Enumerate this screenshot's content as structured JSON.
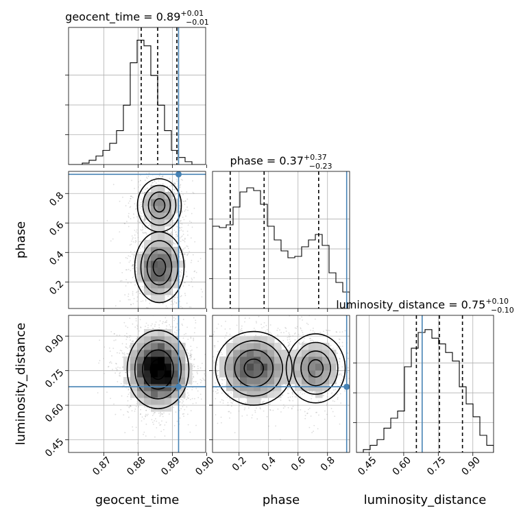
{
  "chart_data": {
    "type": "corner",
    "parameters": [
      "geocent_time",
      "phase",
      "luminosity_distance"
    ],
    "axes": {
      "geocent_time": {
        "label": "geocent_time",
        "range": [
          0.8597,
          0.8997
        ],
        "ticks": [
          0.87,
          0.88,
          0.89,
          0.9
        ],
        "tick_labels": [
          "0.87",
          "0.88",
          "0.89",
          "0.90"
        ]
      },
      "phase": {
        "label": "phase",
        "range": [
          0.02,
          0.95
        ],
        "ticks": [
          0.2,
          0.4,
          0.6,
          0.8
        ],
        "tick_labels": [
          "0.2",
          "0.4",
          "0.6",
          "0.8"
        ]
      },
      "luminosity_distance": {
        "label": "luminosity_distance",
        "range": [
          0.395,
          0.99
        ],
        "ticks": [
          0.45,
          0.6,
          0.75,
          0.9
        ],
        "tick_labels": [
          "0.45",
          "0.60",
          "0.75",
          "0.90"
        ]
      }
    },
    "truths": {
      "geocent_time": 0.8918,
      "phase": 0.93,
      "luminosity_distance": 0.68
    },
    "marginals": [
      {
        "param": "geocent_time",
        "title_main": "geocent_time = 0.89",
        "title_plus": "+0.01",
        "title_minus": "−0.01",
        "quantiles": [
          0.8809,
          0.8857,
          0.8913
        ],
        "bin_edges": [
          0.8597,
          0.8617,
          0.8637,
          0.8657,
          0.8677,
          0.8697,
          0.8717,
          0.8737,
          0.8757,
          0.8777,
          0.8797,
          0.8817,
          0.8837,
          0.8857,
          0.8877,
          0.8897,
          0.8917,
          0.8937,
          0.8957,
          0.8977,
          0.8997
        ],
        "counts": [
          0,
          0,
          0.01,
          0.03,
          0.06,
          0.1,
          0.15,
          0.24,
          0.42,
          0.72,
          0.88,
          0.84,
          0.63,
          0.42,
          0.24,
          0.1,
          0.05,
          0.02,
          0,
          0
        ],
        "ymax": 0.97
      },
      {
        "param": "phase",
        "title_main": "phase = 0.37",
        "title_plus": "+0.37",
        "title_minus": "−0.23",
        "quantiles": [
          0.14,
          0.37,
          0.74
        ],
        "bin_edges": [
          0.02,
          0.0665,
          0.113,
          0.1595,
          0.206,
          0.2525,
          0.299,
          0.3455,
          0.392,
          0.4385,
          0.485,
          0.5315,
          0.578,
          0.6245,
          0.671,
          0.7175,
          0.764,
          0.8105,
          0.857,
          0.9035,
          0.95
        ],
        "counts": [
          0.6,
          0.59,
          0.61,
          0.74,
          0.85,
          0.88,
          0.86,
          0.76,
          0.6,
          0.5,
          0.42,
          0.37,
          0.38,
          0.45,
          0.5,
          0.54,
          0.46,
          0.26,
          0.19,
          0.12
        ],
        "ymax": 1.0
      },
      {
        "param": "luminosity_distance",
        "title_main": "luminosity_distance = 0.75",
        "title_plus": "+0.10",
        "title_minus": "−0.10",
        "quantiles": [
          0.655,
          0.755,
          0.855
        ],
        "bin_edges": [
          0.395,
          0.4248,
          0.4545,
          0.4843,
          0.514,
          0.5438,
          0.5735,
          0.6033,
          0.633,
          0.6628,
          0.6925,
          0.7223,
          0.752,
          0.7818,
          0.8115,
          0.8413,
          0.871,
          0.9008,
          0.9305,
          0.9603,
          0.99
        ],
        "counts": [
          0,
          0.02,
          0.05,
          0.09,
          0.17,
          0.24,
          0.29,
          0.6,
          0.73,
          0.84,
          0.86,
          0.8,
          0.76,
          0.7,
          0.64,
          0.46,
          0.34,
          0.25,
          0.12,
          0.05
        ],
        "ymax": 0.96
      }
    ],
    "pairs": [
      {
        "x": "geocent_time",
        "y": "phase",
        "levels": 4
      },
      {
        "x": "geocent_time",
        "y": "luminosity_distance",
        "levels": 4
      },
      {
        "x": "phase",
        "y": "luminosity_distance",
        "levels": 4
      }
    ]
  }
}
